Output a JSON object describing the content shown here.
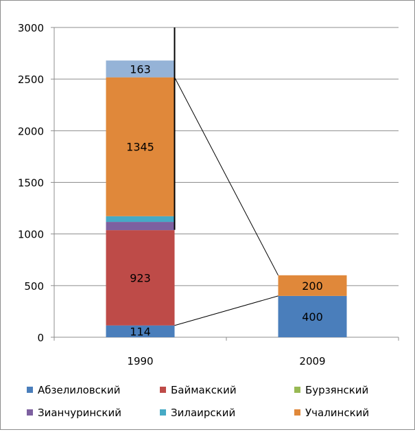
{
  "chart_data": {
    "type": "bar",
    "stacked": true,
    "categories": [
      "1990",
      "2009"
    ],
    "ylim": [
      0,
      3000
    ],
    "y_ticks": [
      "0",
      "500",
      "1000",
      "1500",
      "2000",
      "2500",
      "3000"
    ],
    "grid": true,
    "legend_position": "bottom",
    "series": [
      {
        "name": "Абзелиловский",
        "color": "#4a7ebb",
        "values": [
          114,
          400
        ],
        "labels": [
          "114",
          "400"
        ]
      },
      {
        "name": "Баймакский",
        "color": "#be4b48",
        "values": [
          923,
          0
        ],
        "labels": [
          "923",
          ""
        ]
      },
      {
        "name": "Бурзянский",
        "color": "#98b954",
        "values": [
          0,
          0
        ],
        "labels": [
          "",
          ""
        ]
      },
      {
        "name": "Зианчуринский",
        "color": "#7d60a0",
        "values": [
          80,
          0
        ],
        "labels": [
          "",
          ""
        ]
      },
      {
        "name": "Зилаирский",
        "color": "#46aac5",
        "values": [
          55,
          0
        ],
        "labels": [
          "",
          ""
        ]
      },
      {
        "name": "Учалинский",
        "color": "#e0883a",
        "values": [
          1345,
          200
        ],
        "labels": [
          "1345",
          "200"
        ]
      },
      {
        "name": "",
        "color": "#95b3d7",
        "values": [
          163,
          0
        ],
        "labels": [
          "163",
          ""
        ]
      }
    ]
  }
}
